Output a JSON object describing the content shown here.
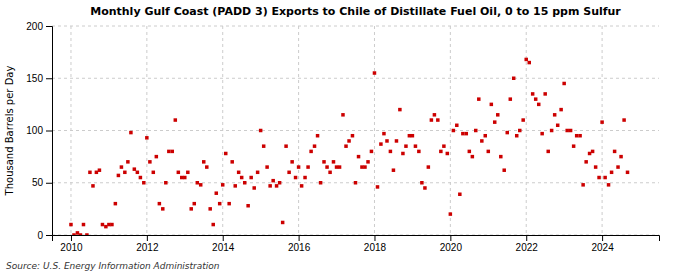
{
  "chart_data": {
    "type": "scatter",
    "title": "Monthly Gulf Coast (PADD 3) Exports to Chile of Distillate Fuel Oil, 0 to 15 ppm Sulfur",
    "ylabel": "Thousand Barrels per Day",
    "annotations": [
      "Source: U.S. Energy Information Administration"
    ],
    "color": "#cc0000",
    "marker": "square",
    "grid": true,
    "xlim": [
      2009.5,
      2025.5
    ],
    "xticks": [
      2010,
      2012,
      2014,
      2016,
      2018,
      2020,
      2022,
      2024
    ],
    "ylim": [
      0,
      200
    ],
    "yticks": [
      0,
      50,
      100,
      150,
      200
    ],
    "x": [
      2010.0,
      2010.08,
      2010.17,
      2010.25,
      2010.33,
      2010.42,
      2010.5,
      2010.58,
      2010.67,
      2010.75,
      2010.83,
      2010.92,
      2011.0,
      2011.08,
      2011.17,
      2011.25,
      2011.33,
      2011.42,
      2011.5,
      2011.58,
      2011.67,
      2011.75,
      2011.83,
      2011.92,
      2012.0,
      2012.08,
      2012.17,
      2012.25,
      2012.33,
      2012.42,
      2012.5,
      2012.58,
      2012.67,
      2012.75,
      2012.83,
      2012.92,
      2013.0,
      2013.08,
      2013.17,
      2013.25,
      2013.33,
      2013.42,
      2013.5,
      2013.58,
      2013.67,
      2013.75,
      2013.83,
      2013.92,
      2014.0,
      2014.08,
      2014.17,
      2014.25,
      2014.33,
      2014.42,
      2014.5,
      2014.58,
      2014.67,
      2014.75,
      2014.83,
      2014.92,
      2015.0,
      2015.08,
      2015.17,
      2015.25,
      2015.33,
      2015.42,
      2015.5,
      2015.58,
      2015.67,
      2015.75,
      2015.83,
      2015.92,
      2016.0,
      2016.08,
      2016.17,
      2016.25,
      2016.33,
      2016.42,
      2016.5,
      2016.58,
      2016.67,
      2016.75,
      2016.83,
      2016.92,
      2017.0,
      2017.08,
      2017.17,
      2017.25,
      2017.33,
      2017.42,
      2017.5,
      2017.58,
      2017.67,
      2017.75,
      2017.83,
      2017.92,
      2018.0,
      2018.08,
      2018.17,
      2018.25,
      2018.33,
      2018.42,
      2018.5,
      2018.58,
      2018.67,
      2018.75,
      2018.83,
      2018.92,
      2019.0,
      2019.08,
      2019.17,
      2019.25,
      2019.33,
      2019.42,
      2019.5,
      2019.58,
      2019.67,
      2019.75,
      2019.83,
      2019.92,
      2020.0,
      2020.08,
      2020.17,
      2020.25,
      2020.33,
      2020.42,
      2020.5,
      2020.58,
      2020.67,
      2020.75,
      2020.83,
      2020.92,
      2021.0,
      2021.08,
      2021.17,
      2021.25,
      2021.33,
      2021.42,
      2021.5,
      2021.58,
      2021.67,
      2021.75,
      2021.83,
      2021.92,
      2022.0,
      2022.08,
      2022.17,
      2022.25,
      2022.33,
      2022.42,
      2022.5,
      2022.58,
      2022.67,
      2022.75,
      2022.83,
      2022.92,
      2023.0,
      2023.08,
      2023.17,
      2023.25,
      2023.33,
      2023.42,
      2023.5,
      2023.58,
      2023.67,
      2023.75,
      2023.83,
      2023.92,
      2024.0,
      2024.08,
      2024.17,
      2024.25,
      2024.33,
      2024.42,
      2024.5,
      2024.58,
      2024.67
    ],
    "values": [
      10,
      0,
      2,
      0,
      10,
      0,
      60,
      47,
      60,
      62,
      10,
      8,
      10,
      10,
      30,
      57,
      65,
      60,
      70,
      98,
      63,
      60,
      55,
      50,
      93,
      70,
      60,
      75,
      30,
      25,
      50,
      80,
      80,
      110,
      60,
      55,
      55,
      60,
      25,
      30,
      50,
      48,
      70,
      65,
      25,
      10,
      40,
      30,
      48,
      78,
      30,
      70,
      47,
      60,
      55,
      50,
      28,
      55,
      45,
      60,
      100,
      85,
      65,
      47,
      52,
      47,
      50,
      12,
      85,
      60,
      70,
      55,
      65,
      47,
      55,
      65,
      80,
      85,
      95,
      50,
      70,
      65,
      60,
      70,
      65,
      65,
      115,
      85,
      90,
      95,
      50,
      75,
      65,
      65,
      70,
      80,
      155,
      46,
      87,
      97,
      90,
      80,
      62,
      90,
      120,
      78,
      85,
      95,
      95,
      85,
      80,
      50,
      45,
      65,
      110,
      115,
      110,
      80,
      85,
      78,
      20,
      100,
      105,
      39,
      97,
      97,
      80,
      75,
      100,
      130,
      90,
      95,
      80,
      125,
      108,
      115,
      75,
      62,
      98,
      130,
      150,
      95,
      100,
      110,
      168,
      165,
      135,
      130,
      125,
      97,
      135,
      80,
      100,
      115,
      105,
      120,
      145,
      100,
      100,
      85,
      95,
      95,
      48,
      70,
      78,
      80,
      65,
      55,
      108,
      55,
      48,
      60,
      80,
      65,
      75,
      110,
      60
    ]
  }
}
